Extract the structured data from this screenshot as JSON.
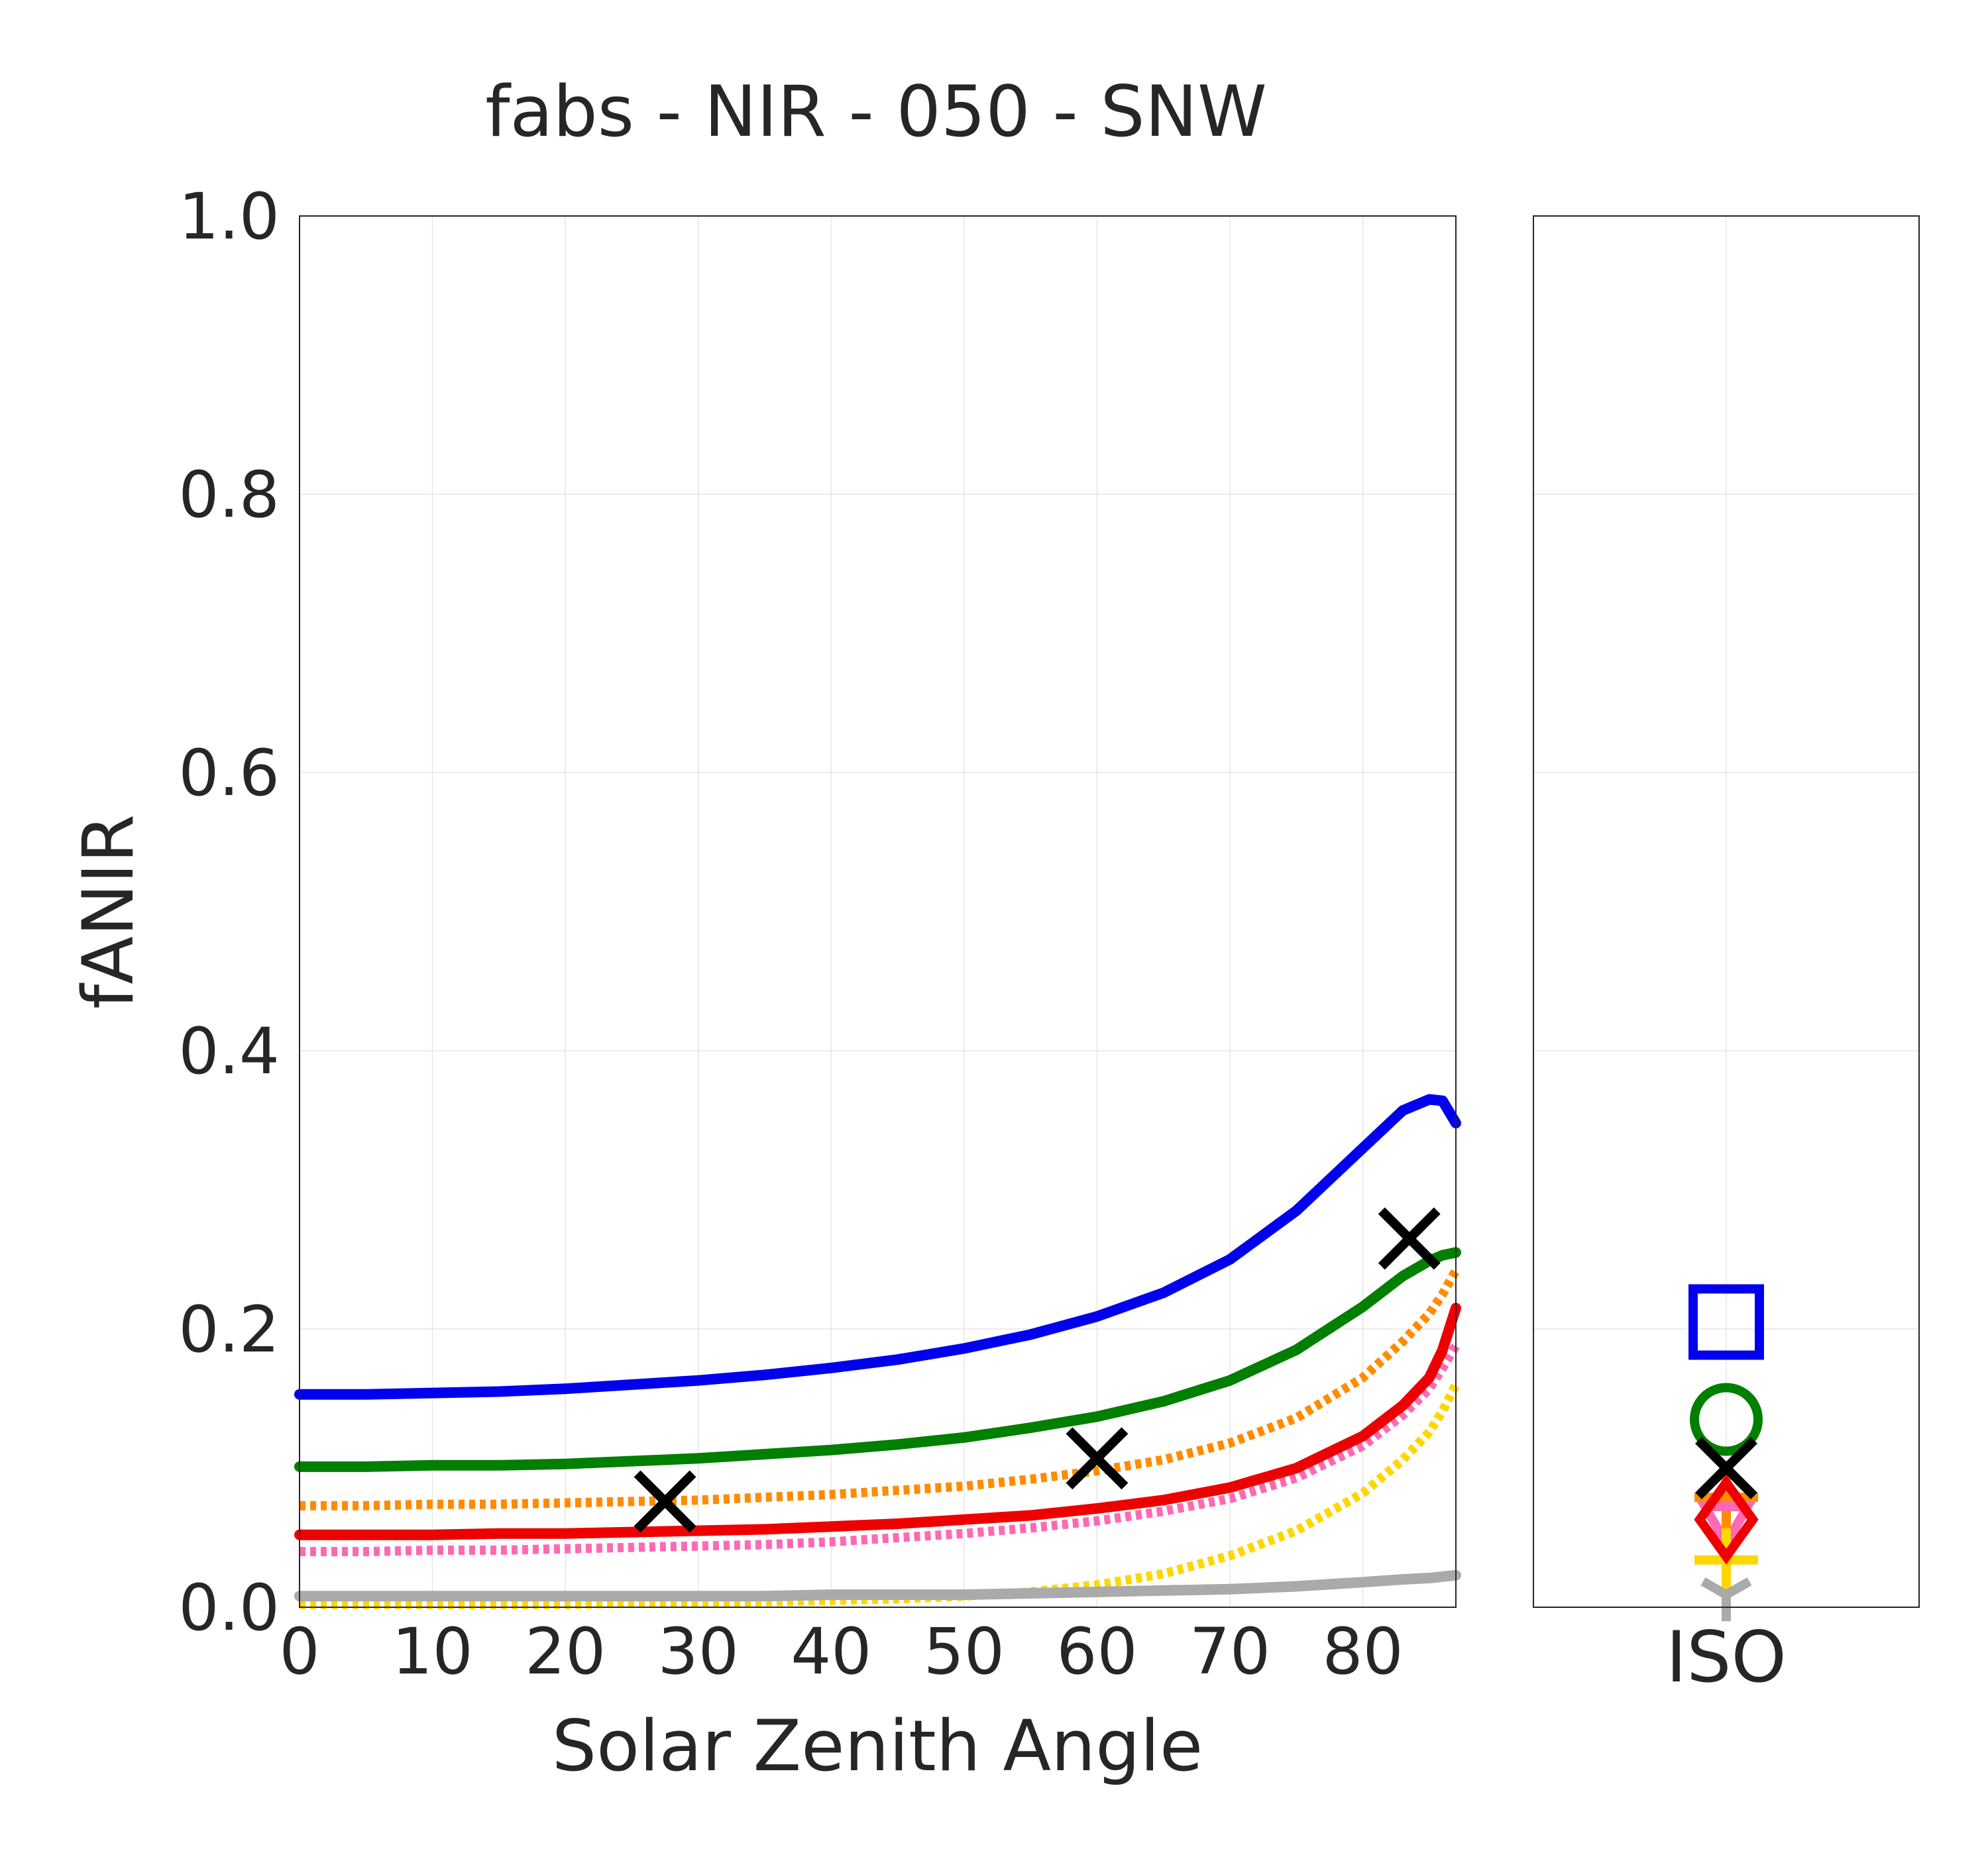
{
  "chart_data": {
    "type": "line",
    "title": "fabs - NIR - 050 - SNW",
    "xlabel": "Solar Zenith Angle",
    "ylabel": "fANIR",
    "xlim": [
      0,
      87
    ],
    "ylim": [
      0,
      1
    ],
    "grid": true,
    "x_ticks": [
      "0",
      "10",
      "20",
      "30",
      "40",
      "50",
      "60",
      "70",
      "80"
    ],
    "y_ticks": [
      "0.0",
      "0.2",
      "0.4",
      "0.6",
      "0.8",
      "1.0"
    ],
    "iso_panel": {
      "xlabel": "ISO"
    },
    "x": [
      0,
      5,
      10,
      15,
      20,
      25,
      30,
      35,
      40,
      45,
      50,
      55,
      60,
      65,
      70,
      75,
      80,
      83,
      85,
      86,
      87
    ],
    "series": [
      {
        "color": "#0000ee",
        "style": "solid",
        "values": [
          0.153,
          0.153,
          0.154,
          0.155,
          0.157,
          0.16,
          0.163,
          0.167,
          0.172,
          0.178,
          0.186,
          0.196,
          0.209,
          0.226,
          0.25,
          0.285,
          0.33,
          0.357,
          0.365,
          0.364,
          0.348
        ]
      },
      {
        "color": "#007f00",
        "style": "solid",
        "values": [
          0.101,
          0.101,
          0.102,
          0.102,
          0.103,
          0.105,
          0.107,
          0.11,
          0.113,
          0.117,
          0.122,
          0.129,
          0.137,
          0.148,
          0.163,
          0.185,
          0.216,
          0.238,
          0.249,
          0.253,
          0.255
        ]
      },
      {
        "color": "#ff8c00",
        "style": "dotted",
        "values": [
          0.073,
          0.073,
          0.074,
          0.074,
          0.075,
          0.076,
          0.077,
          0.079,
          0.081,
          0.084,
          0.087,
          0.092,
          0.098,
          0.106,
          0.118,
          0.136,
          0.165,
          0.191,
          0.211,
          0.225,
          0.242
        ]
      },
      {
        "color": "#ee0000",
        "style": "solid",
        "values": [
          0.052,
          0.052,
          0.052,
          0.053,
          0.053,
          0.054,
          0.055,
          0.056,
          0.058,
          0.06,
          0.063,
          0.066,
          0.071,
          0.077,
          0.086,
          0.1,
          0.123,
          0.145,
          0.165,
          0.185,
          0.215
        ]
      },
      {
        "color": "#ff69b4",
        "style": "dotted",
        "values": [
          0.04,
          0.04,
          0.041,
          0.041,
          0.042,
          0.043,
          0.044,
          0.045,
          0.047,
          0.05,
          0.053,
          0.057,
          0.062,
          0.069,
          0.078,
          0.093,
          0.116,
          0.138,
          0.157,
          0.172,
          0.188
        ]
      },
      {
        "color": "#ffd700",
        "style": "dotted",
        "values": [
          0.002,
          0.002,
          0.002,
          0.002,
          0.002,
          0.003,
          0.003,
          0.004,
          0.005,
          0.006,
          0.008,
          0.011,
          0.016,
          0.024,
          0.037,
          0.055,
          0.082,
          0.106,
          0.126,
          0.141,
          0.16
        ]
      },
      {
        "color": "#aaaaaa",
        "style": "solid",
        "values": [
          0.008,
          0.008,
          0.008,
          0.008,
          0.008,
          0.008,
          0.008,
          0.008,
          0.009,
          0.009,
          0.009,
          0.01,
          0.011,
          0.012,
          0.013,
          0.015,
          0.018,
          0.02,
          0.021,
          0.022,
          0.023
        ]
      }
    ],
    "markers": [
      {
        "color": "#000000",
        "shape": "x",
        "x": [
          27.5,
          60,
          83.5
        ],
        "y": [
          0.076,
          0.107,
          0.265
        ]
      }
    ],
    "iso_markers": [
      {
        "color": "#0000ee",
        "shape": "square",
        "y": 0.205
      },
      {
        "color": "#007f00",
        "shape": "circle",
        "y": 0.135
      },
      {
        "color": "#ff8c00",
        "shape": "plus",
        "y": 0.079
      },
      {
        "color": "#ff69b4",
        "shape": "triangle-down",
        "y": 0.06
      },
      {
        "color": "#ffd700",
        "shape": "plus",
        "y": 0.034
      },
      {
        "color": "#aaaaaa",
        "shape": "tri-down",
        "y": 0.009
      },
      {
        "color": "#ee0000",
        "shape": "diamond",
        "y": 0.063
      },
      {
        "color": "#000000",
        "shape": "x",
        "y": 0.1
      }
    ]
  }
}
